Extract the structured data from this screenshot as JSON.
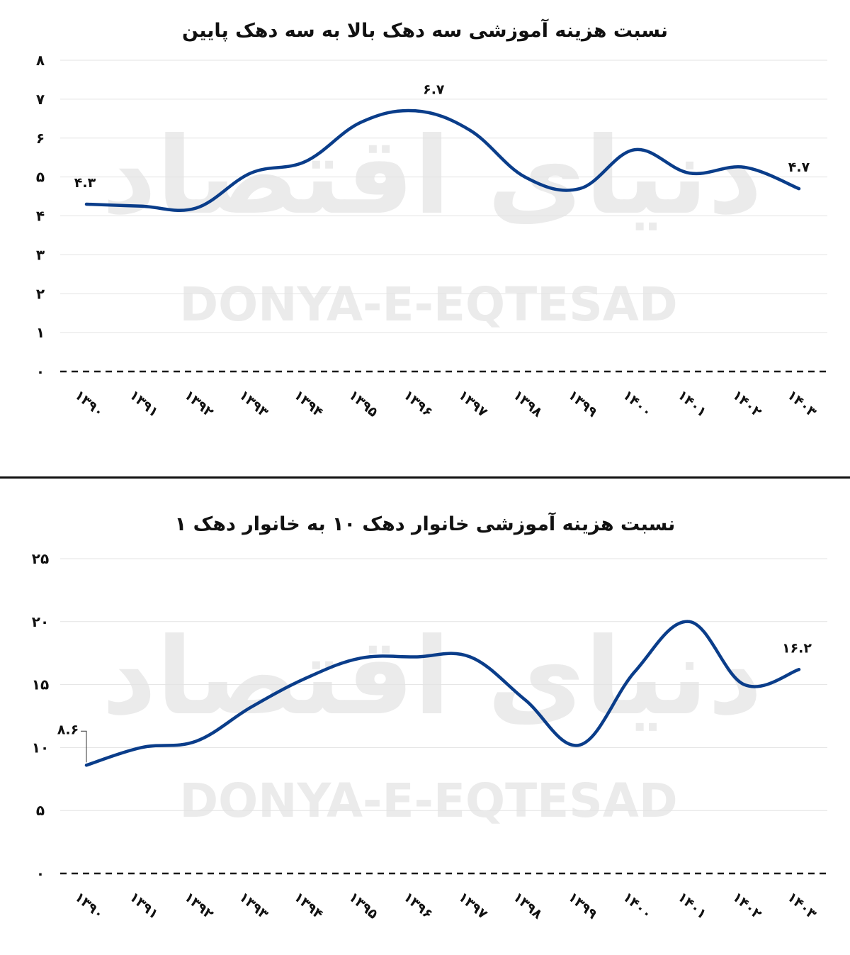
{
  "watermark": {
    "logo_text": "دنیای اقتصاد",
    "latin": "DONYA-E-EQTESAD",
    "color": "#ebebeb"
  },
  "colors": {
    "line": "#0a3d8a",
    "grid": "#e3e3e3",
    "baseline": "#1a1a1a",
    "text": "#111111"
  },
  "chart_data": [
    {
      "type": "line",
      "title": "نسبت هزینه آموزشی سه دهک بالا به سه دهک پایین",
      "categories": [
        "۱۳۹۰",
        "۱۳۹۱",
        "۱۳۹۲",
        "۱۳۹۳",
        "۱۳۹۴",
        "۱۳۹۵",
        "۱۳۹۶",
        "۱۳۹۷",
        "۱۳۹۸",
        "۱۳۹۹",
        "۱۴۰۰",
        "۱۴۰۱",
        "۱۴۰۲",
        "۱۴۰۳"
      ],
      "series": [
        {
          "values": [
            4.3,
            4.25,
            4.2,
            5.1,
            5.4,
            6.4,
            6.7,
            6.2,
            5.0,
            4.7,
            5.7,
            5.1,
            5.25,
            4.7
          ]
        }
      ],
      "yticks": [
        "۰",
        "۱",
        "۲",
        "۳",
        "۴",
        "۵",
        "۶",
        "۷",
        "۸"
      ],
      "ylim": [
        0,
        8
      ],
      "data_labels": [
        {
          "index": 0,
          "text": "۴.۳"
        },
        {
          "index": 6,
          "text": "۶.۷"
        },
        {
          "index": 13,
          "text": "۴.۷"
        }
      ],
      "grid": true
    },
    {
      "type": "line",
      "title": "نسبت هزینه آموزشی خانوار دهک ۱۰ به خانوار دهک ۱",
      "categories": [
        "۱۳۹۰",
        "۱۳۹۱",
        "۱۳۹۲",
        "۱۳۹۳",
        "۱۳۹۴",
        "۱۳۹۵",
        "۱۳۹۶",
        "۱۳۹۷",
        "۱۳۹۸",
        "۱۳۹۹",
        "۱۴۰۰",
        "۱۴۰۱",
        "۱۴۰۲",
        "۱۴۰۳"
      ],
      "series": [
        {
          "values": [
            8.6,
            10.0,
            10.5,
            13.2,
            15.5,
            17.1,
            17.2,
            17.2,
            13.8,
            10.2,
            16.0,
            20.0,
            15.0,
            16.2
          ]
        }
      ],
      "yticks": [
        "۰",
        "۵",
        "۱۰",
        "۱۵",
        "۲۰",
        "۲۵"
      ],
      "ylim": [
        0,
        25
      ],
      "data_labels": [
        {
          "index": 0,
          "text": "۸.۶"
        },
        {
          "index": 13,
          "text": "۱۶.۲"
        }
      ],
      "grid": true
    }
  ]
}
